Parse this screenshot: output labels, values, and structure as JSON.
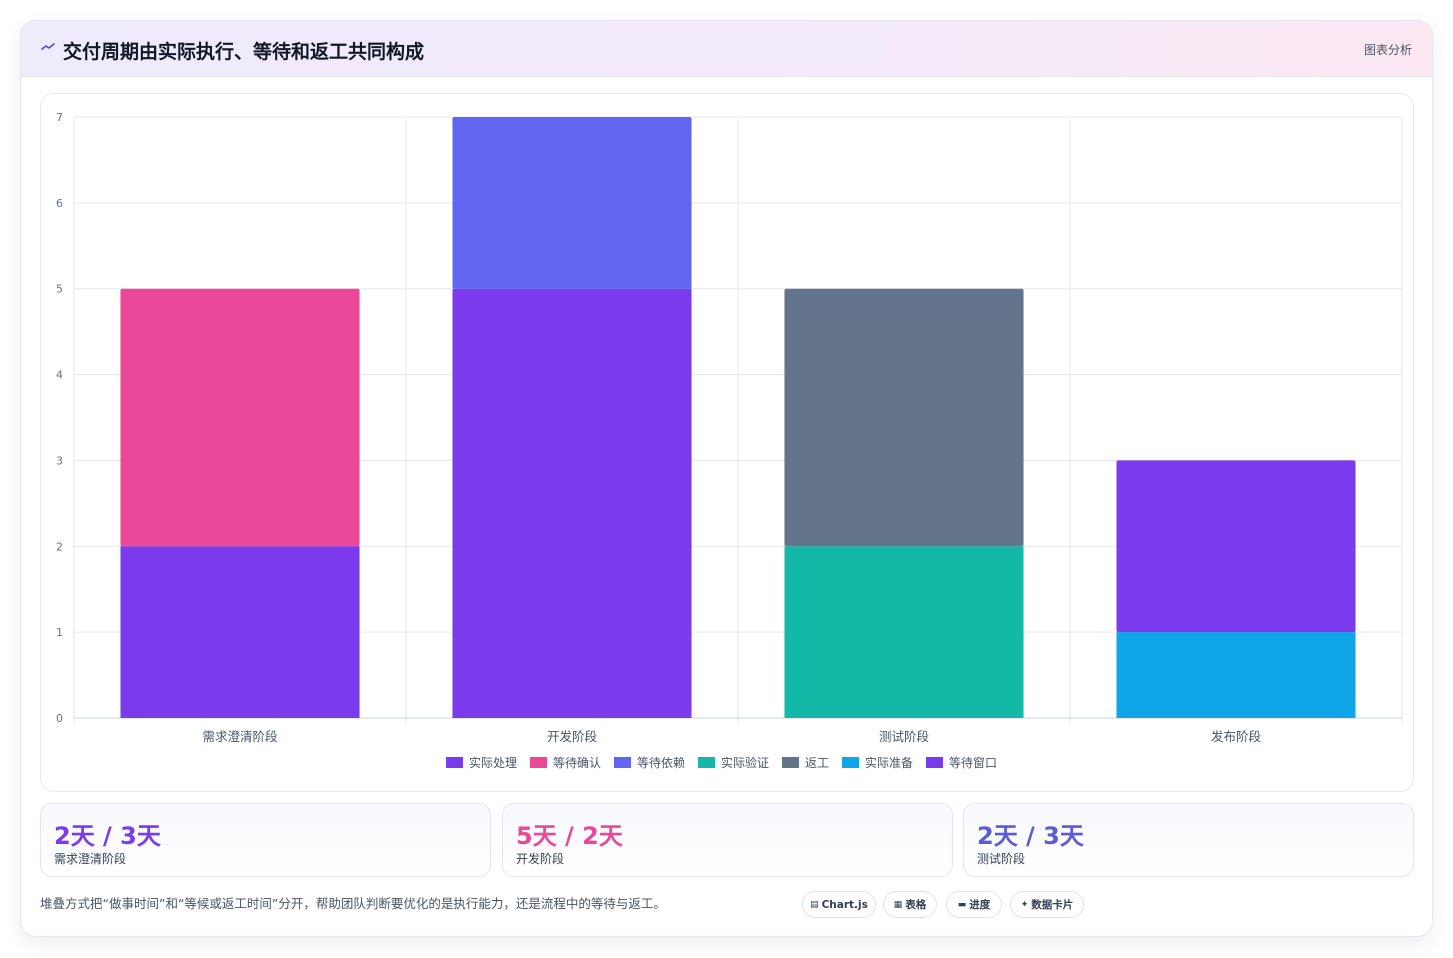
{
  "header": {
    "title_icon": "trend-icon",
    "title": "交付周期由实际执行、等待和返工共同构成",
    "tag": "图表分析"
  },
  "chart_data": {
    "type": "bar",
    "stacked": true,
    "categories": [
      "需求澄清阶段",
      "开发阶段",
      "测试阶段",
      "发布阶段"
    ],
    "series": [
      {
        "name": "实际处理",
        "color": "#7c3aed",
        "values": [
          2,
          5,
          0,
          0
        ]
      },
      {
        "name": "等待确认",
        "color": "#ec4899",
        "values": [
          3,
          0,
          0,
          0
        ]
      },
      {
        "name": "等待依赖",
        "color": "#6366f1",
        "values": [
          0,
          2,
          0,
          0
        ]
      },
      {
        "name": "实际验证",
        "color": "#14b8a6",
        "values": [
          0,
          0,
          2,
          0
        ]
      },
      {
        "name": "返工",
        "color": "#64748b",
        "values": [
          0,
          0,
          3,
          0
        ]
      },
      {
        "name": "实际准备",
        "color": "#0ea5e9",
        "values": [
          0,
          0,
          0,
          1
        ]
      },
      {
        "name": "等待窗口",
        "color": "#7c3aed",
        "values": [
          0,
          0,
          0,
          2
        ]
      }
    ],
    "ylim": [
      0,
      7
    ],
    "yticks": [
      0,
      1,
      2,
      3,
      4,
      5,
      6,
      7
    ],
    "grid": true,
    "legend": "bottom"
  },
  "stats": [
    {
      "value": "2天 / 3天",
      "label": "需求澄清阶段",
      "color": "#7c3aed"
    },
    {
      "value": "5天 / 2天",
      "label": "开发阶段",
      "color": "#ec4899"
    },
    {
      "value": "2天 / 3天",
      "label": "测试阶段",
      "color": "#5b5bd6"
    }
  ],
  "footer": {
    "note": "堆叠方式把“做事时间”和“等候或返工时间”分开，帮助团队判断要优化的是执行能力，还是流程中的等待与返工。",
    "pills": [
      {
        "icon": "chart-icon",
        "label": "Chart.js"
      },
      {
        "icon": "table-icon",
        "label": "表格"
      },
      {
        "icon": "progress-icon",
        "label": "进度"
      },
      {
        "icon": "sparkle-icon",
        "label": "数据卡片"
      }
    ]
  }
}
